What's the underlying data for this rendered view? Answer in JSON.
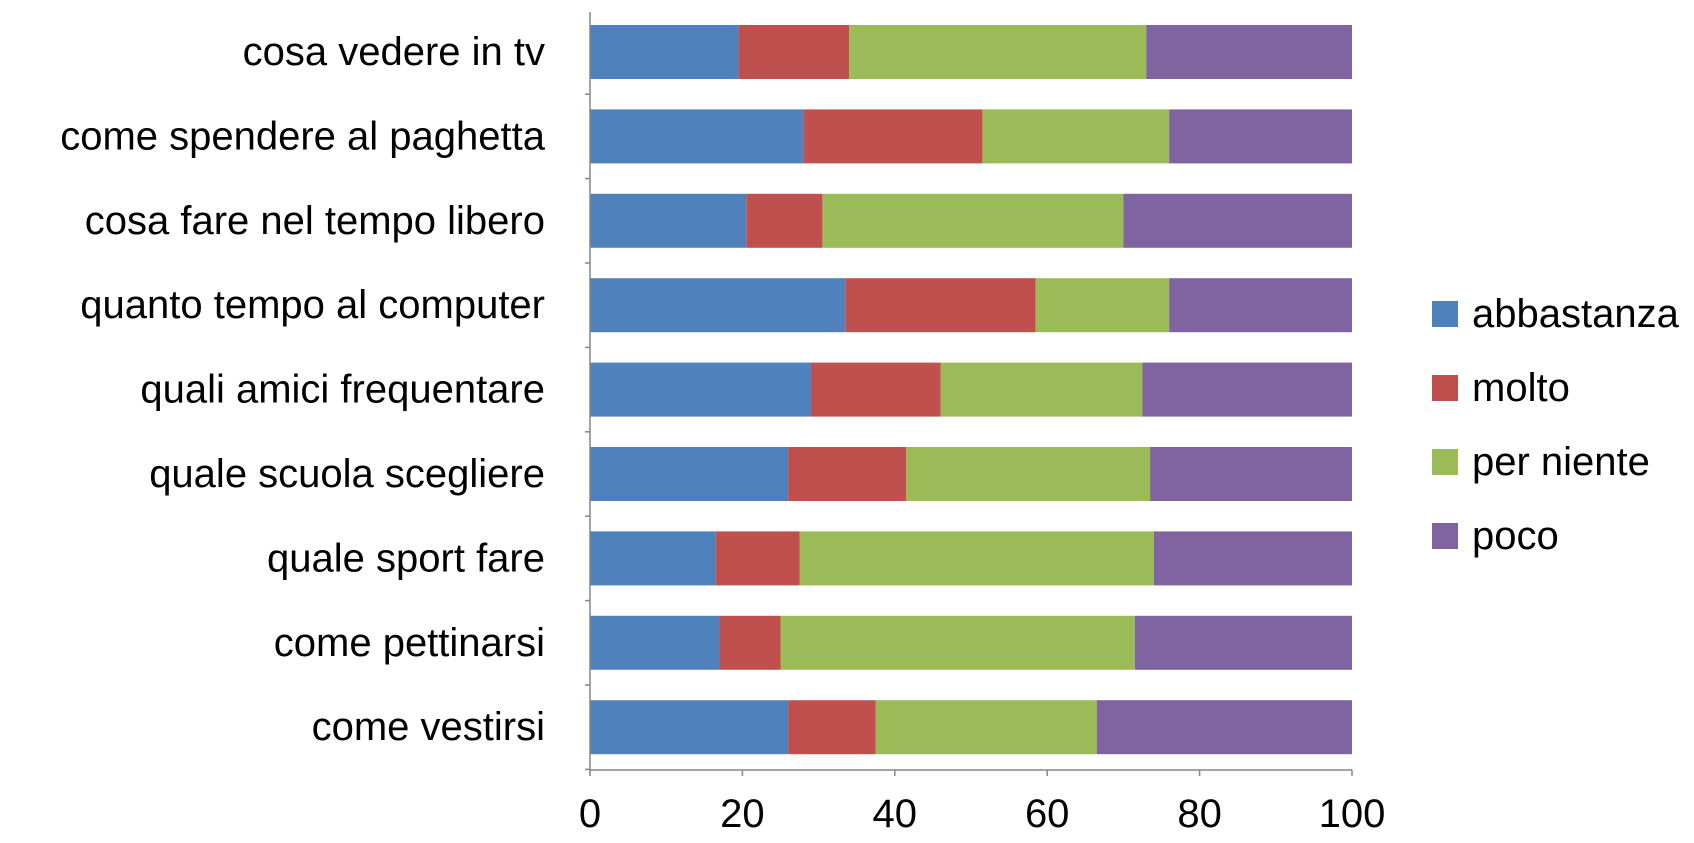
{
  "chart_data": {
    "type": "bar",
    "orientation": "horizontal",
    "stacked": true,
    "title": "",
    "xlabel": "",
    "ylabel": "",
    "xlim": [
      0,
      100
    ],
    "xticks": [
      "0",
      "20",
      "40",
      "60",
      "80",
      "100"
    ],
    "grid": false,
    "legend_position": "right",
    "categories": [
      "cosa vedere in tv",
      "come spendere al paghetta",
      "cosa fare nel tempo libero",
      "quanto tempo al computer",
      "quali amici frequentare",
      "quale scuola scegliere",
      "quale sport fare",
      "come pettinarsi",
      "come vestirsi"
    ],
    "series": [
      {
        "name": "abbastanza",
        "color": "#4F81BD",
        "values": [
          19.5,
          28,
          20.5,
          33.5,
          29,
          26,
          16.5,
          17,
          26
        ]
      },
      {
        "name": "molto",
        "color": "#C0504D",
        "values": [
          14.5,
          23.5,
          10,
          25,
          17,
          15.5,
          11,
          8,
          11.5
        ]
      },
      {
        "name": "per niente",
        "color": "#9BBB59",
        "values": [
          39,
          24.5,
          39.5,
          17.5,
          26.5,
          32,
          46.5,
          46.5,
          29
        ]
      },
      {
        "name": "poco",
        "color": "#8064A2",
        "values": [
          27,
          24,
          30,
          24,
          27.5,
          26.5,
          26,
          28.5,
          33.5
        ]
      }
    ]
  }
}
